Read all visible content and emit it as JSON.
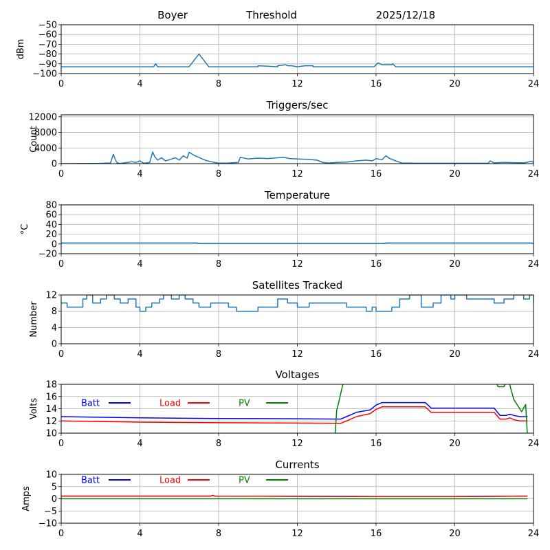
{
  "header": {
    "site": "Boyer",
    "label": "Threshold",
    "date": "2025/12/18"
  },
  "chart_data": [
    {
      "type": "line",
      "title": "",
      "ylabel": "dBm",
      "xlabel": "",
      "xlim": [
        0,
        24
      ],
      "ylim": [
        -100,
        -50
      ],
      "xticks": [
        0,
        4,
        8,
        12,
        16,
        20,
        24
      ],
      "yticks": [
        -100,
        -90,
        -80,
        -70,
        -60,
        -50
      ],
      "ytick_labels": [
        "−100",
        "−90",
        "−80",
        "−70",
        "−60",
        "−50"
      ],
      "grid": true,
      "series": [
        {
          "name": "Threshold",
          "color": "#1f77b4",
          "x": [
            0,
            4.7,
            4.8,
            4.9,
            6.5,
            7.0,
            7.5,
            10.0,
            10.0,
            11.0,
            11.0,
            11.4,
            11.5,
            11.7,
            12.0,
            12.4,
            12.8,
            12.8,
            15.9,
            16.0,
            16.1,
            16.3,
            16.8,
            16.85,
            17.0,
            24
          ],
          "y": [
            -93,
            -93,
            -90,
            -93,
            -93,
            -80,
            -93,
            -93,
            -92,
            -93,
            -92,
            -91,
            -92,
            -92,
            -93,
            -92,
            -92,
            -93,
            -93,
            -91,
            -89,
            -91,
            -91,
            -90,
            -93,
            -93
          ]
        }
      ]
    },
    {
      "type": "line",
      "title": "Triggers/sec",
      "ylabel": "Count",
      "xlabel": "",
      "xlim": [
        0,
        24
      ],
      "ylim": [
        0,
        12500
      ],
      "xticks": [
        0,
        4,
        8,
        12,
        16,
        20,
        24
      ],
      "yticks": [
        0,
        4000,
        8000,
        12000
      ],
      "ytick_labels": [
        "0",
        "4000",
        "8000",
        "12000"
      ],
      "grid": true,
      "series": [
        {
          "name": "Triggers",
          "color": "#1f77b4",
          "x": [
            0,
            1.8,
            2.5,
            2.65,
            2.75,
            2.85,
            3.0,
            3.6,
            3.8,
            4.0,
            4.2,
            4.5,
            4.65,
            4.75,
            4.9,
            5.1,
            5.3,
            5.5,
            5.8,
            6.0,
            6.2,
            6.4,
            6.5,
            6.8,
            7.0,
            7.3,
            7.6,
            8.0,
            8.5,
            9.0,
            9.1,
            9.5,
            10.0,
            10.5,
            11.0,
            11.3,
            11.6,
            12.0,
            12.5,
            13.0,
            13.3,
            13.6,
            14.0,
            14.5,
            15.0,
            15.5,
            15.8,
            16.0,
            16.3,
            16.5,
            16.7,
            17.0,
            17.3,
            18,
            19,
            20,
            21,
            21.7,
            21.8,
            22.0,
            22.5,
            23,
            23.5,
            23.9,
            24
          ],
          "y": [
            0,
            60,
            150,
            2400,
            1000,
            200,
            60,
            500,
            300,
            700,
            100,
            300,
            3000,
            1800,
            900,
            1500,
            700,
            1000,
            1500,
            900,
            2000,
            1400,
            2900,
            2000,
            1600,
            900,
            500,
            100,
            150,
            300,
            1600,
            1200,
            1400,
            1300,
            1500,
            1600,
            1300,
            1200,
            1100,
            900,
            300,
            150,
            300,
            400,
            700,
            900,
            700,
            1300,
            1000,
            2000,
            1300,
            700,
            150,
            100,
            100,
            100,
            100,
            100,
            700,
            200,
            300,
            250,
            200,
            600,
            300
          ]
        }
      ]
    },
    {
      "type": "line",
      "title": "Temperature",
      "ylabel": "°C",
      "xlabel": "",
      "xlim": [
        0,
        24
      ],
      "ylim": [
        -20,
        80
      ],
      "xticks": [
        0,
        4,
        8,
        12,
        16,
        20,
        24
      ],
      "yticks": [
        -20,
        0,
        20,
        40,
        60,
        80
      ],
      "ytick_labels": [
        "−20",
        "0",
        "20",
        "40",
        "60",
        "80"
      ],
      "grid": true,
      "series": [
        {
          "name": "Temperature",
          "color": "#1f77b4",
          "x": [
            0,
            6.9,
            7.0,
            16.4,
            16.5,
            23.9,
            24
          ],
          "y": [
            2,
            2,
            1,
            1,
            2,
            2,
            1
          ]
        }
      ]
    },
    {
      "type": "line",
      "title": "Satellites Tracked",
      "ylabel": "Number",
      "xlabel": "",
      "xlim": [
        0,
        24
      ],
      "ylim": [
        0,
        12
      ],
      "xticks": [
        0,
        4,
        8,
        12,
        16,
        20,
        24
      ],
      "yticks": [
        0,
        4,
        8,
        12
      ],
      "ytick_labels": [
        "0",
        "4",
        "8",
        "12"
      ],
      "grid": true,
      "step": true,
      "series": [
        {
          "name": "Satellites",
          "color": "#1f77b4",
          "x": [
            0,
            0.3,
            0.6,
            1.1,
            1.3,
            1.6,
            2.0,
            2.3,
            2.7,
            3.0,
            3.4,
            3.8,
            4.0,
            4.3,
            4.6,
            5.0,
            5.2,
            5.6,
            6.0,
            6.3,
            6.7,
            7.0,
            7.6,
            8.0,
            8.5,
            8.9,
            9.5,
            10.0,
            10.7,
            11.0,
            11.5,
            12.0,
            12.6,
            13.0,
            13.5,
            14.0,
            14.5,
            15.0,
            15.5,
            15.8,
            16.0,
            16.4,
            16.8,
            17.2,
            17.7,
            18.3,
            18.9,
            19.3,
            19.8,
            20.0,
            20.6,
            21.0,
            21.5,
            22.0,
            22.5,
            23.0,
            23.5,
            23.8,
            24
          ],
          "y": [
            10,
            9,
            9,
            11,
            12,
            10,
            11,
            12,
            11,
            10,
            11,
            9,
            8,
            9,
            10,
            11,
            12,
            11,
            12,
            11,
            10,
            9,
            10,
            10,
            9,
            8,
            8,
            9,
            9,
            11,
            10,
            9,
            10,
            10,
            10,
            10,
            9,
            9,
            8,
            9,
            8,
            8,
            9,
            11,
            12,
            9,
            10,
            12,
            11,
            12,
            11,
            11,
            11,
            10,
            11,
            12,
            11,
            12,
            10
          ]
        }
      ]
    },
    {
      "type": "line",
      "title": "Voltages",
      "ylabel": "Volts",
      "xlabel": "",
      "xlim": [
        0,
        24
      ],
      "ylim": [
        10,
        18
      ],
      "xticks": [
        0,
        4,
        8,
        12,
        16,
        20,
        24
      ],
      "yticks": [
        10,
        12,
        14,
        16,
        18
      ],
      "ytick_labels": [
        "10",
        "12",
        "14",
        "16",
        "18"
      ],
      "grid": true,
      "legend": "top-left, inline",
      "series": [
        {
          "name": "Batt",
          "color": "#0000ff",
          "x": [
            0,
            4,
            8,
            12,
            14.2,
            14.5,
            15.0,
            15.7,
            16.0,
            16.3,
            18.5,
            18.8,
            22.0,
            22.3,
            22.6,
            22.8,
            23.0,
            23.3,
            23.7
          ],
          "y": [
            12.7,
            12.5,
            12.4,
            12.35,
            12.3,
            12.7,
            13.4,
            13.8,
            14.6,
            15.0,
            15.0,
            14.1,
            14.1,
            12.9,
            12.9,
            13.1,
            12.9,
            12.7,
            12.7
          ]
        },
        {
          "name": "Load",
          "color": "#ff0000",
          "x": [
            0,
            4,
            8,
            12,
            14.2,
            14.5,
            15.0,
            15.7,
            16.0,
            16.3,
            18.5,
            18.8,
            22.0,
            22.3,
            22.6,
            22.8,
            23.0,
            23.3,
            23.7
          ],
          "y": [
            12.0,
            11.8,
            11.7,
            11.65,
            11.6,
            12.0,
            12.7,
            13.2,
            13.9,
            14.3,
            14.3,
            13.4,
            13.4,
            12.3,
            12.3,
            12.5,
            12.2,
            12.0,
            12.0
          ]
        },
        {
          "name": "PV",
          "color": "#008000",
          "x": [
            13.9,
            14.0,
            14.1,
            14.3,
            14.5,
            22.0,
            22.2,
            22.5,
            22.7,
            23.0,
            23.4,
            23.6,
            23.7
          ],
          "y": [
            9.0,
            13.8,
            15.0,
            17.8,
            19.0,
            19.0,
            17.6,
            17.6,
            19.0,
            15.5,
            13.5,
            14.7,
            9.0
          ]
        }
      ]
    },
    {
      "type": "line",
      "title": "Currents",
      "ylabel": "Amps",
      "xlabel": "",
      "xlim": [
        0,
        24
      ],
      "ylim": [
        -10,
        10
      ],
      "xticks": [
        0,
        4,
        8,
        12,
        16,
        20,
        24
      ],
      "yticks": [
        -10,
        -5,
        0,
        5,
        10
      ],
      "ytick_labels": [
        "−10",
        "−5",
        "0",
        "5",
        "10"
      ],
      "grid": true,
      "legend": "top-left, inline",
      "series": [
        {
          "name": "Batt",
          "color": "#0000ff",
          "x": [
            0,
            7.6,
            7.7,
            7.8,
            16,
            20,
            23.7
          ],
          "y": [
            1.1,
            1.1,
            1.4,
            1.1,
            0.9,
            0.9,
            1.1
          ]
        },
        {
          "name": "Load",
          "color": "#ff0000",
          "x": [
            0,
            7.6,
            7.7,
            7.8,
            16,
            20,
            23.7
          ],
          "y": [
            1.1,
            1.1,
            1.4,
            1.1,
            0.9,
            0.9,
            1.1
          ]
        },
        {
          "name": "PV",
          "color": "#008000",
          "x": [
            0,
            23.7
          ],
          "y": [
            0,
            0
          ]
        }
      ]
    }
  ],
  "legend_labels": {
    "batt": "Batt",
    "load": "Load",
    "pv": "PV"
  }
}
